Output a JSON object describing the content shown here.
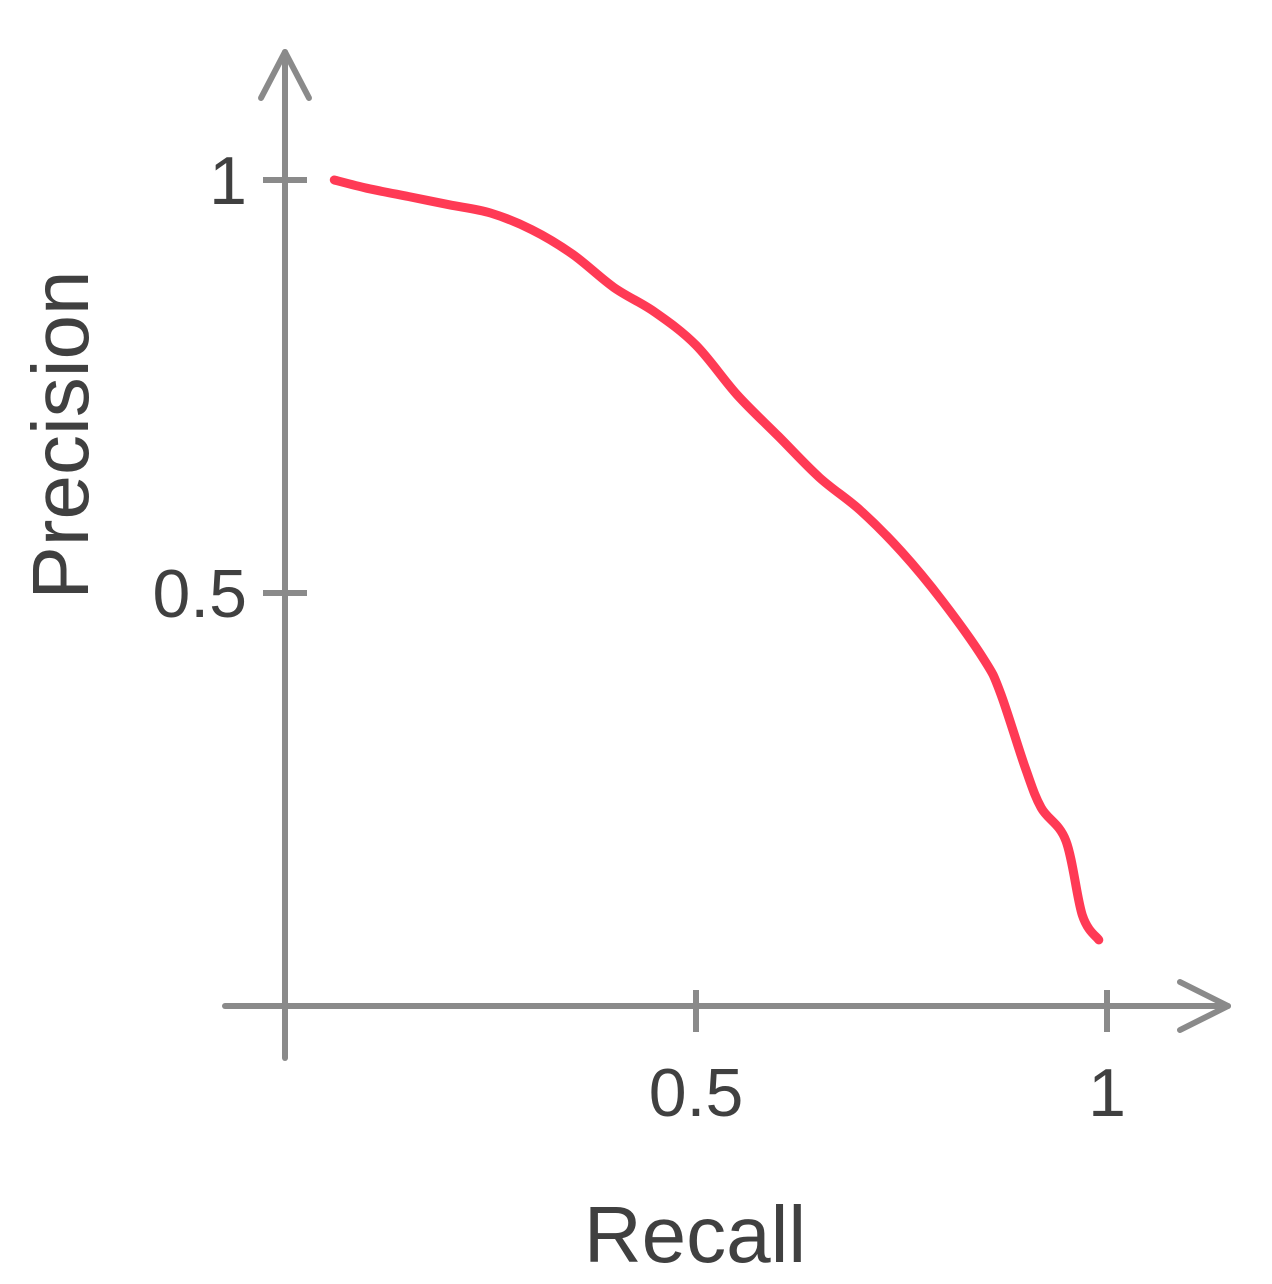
{
  "chart_data": {
    "type": "line",
    "title": "",
    "xlabel": "Recall",
    "ylabel": "Precision",
    "xlim": [
      0,
      1
    ],
    "ylim": [
      0,
      1
    ],
    "grid": false,
    "x_ticks": [
      0.5,
      1
    ],
    "x_tick_labels": [
      "0.5",
      "1"
    ],
    "y_ticks": [
      0.5,
      1
    ],
    "y_tick_labels": [
      "0.5",
      "1"
    ],
    "series": [
      {
        "x": [
          0.06,
          0.1,
          0.15,
          0.2,
          0.25,
          0.3,
          0.35,
          0.4,
          0.45,
          0.5,
          0.55,
          0.6,
          0.65,
          0.7,
          0.75,
          0.8,
          0.85,
          0.87,
          0.9,
          0.92,
          0.95,
          0.97,
          0.99
        ],
        "y": [
          1.0,
          0.99,
          0.98,
          0.97,
          0.96,
          0.94,
          0.91,
          0.87,
          0.84,
          0.8,
          0.74,
          0.69,
          0.64,
          0.6,
          0.55,
          0.49,
          0.42,
          0.38,
          0.29,
          0.24,
          0.2,
          0.11,
          0.08
        ]
      }
    ],
    "colors": {
      "axis": "#8a8a8a",
      "text": "#404040",
      "line": "#ff3a55"
    }
  }
}
